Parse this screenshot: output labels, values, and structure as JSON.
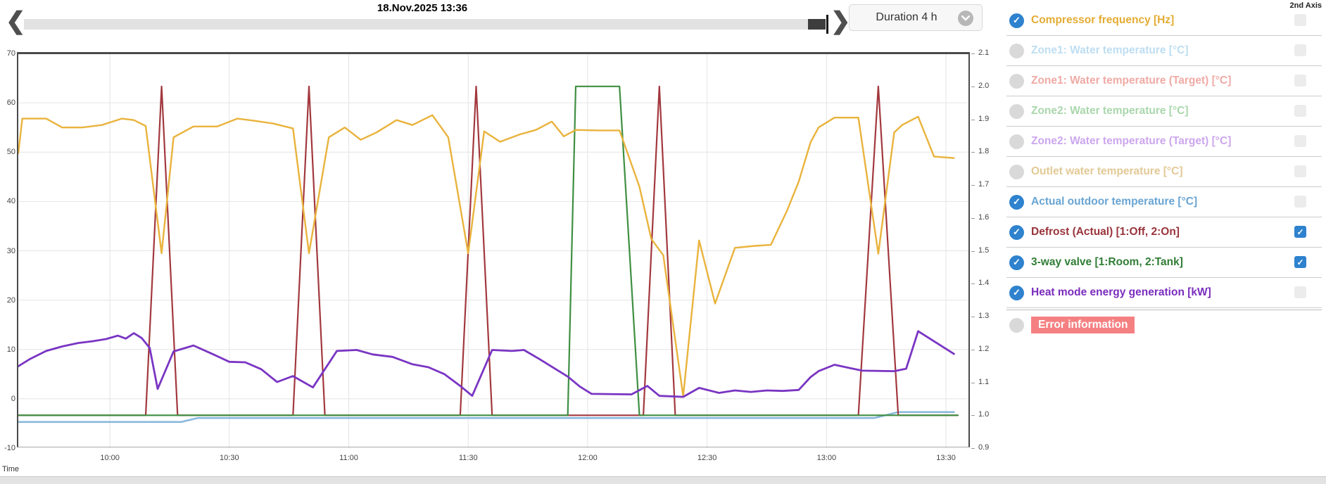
{
  "header": {
    "title": "18.Nov.2025 13:36",
    "duration_label": "Duration 4 h",
    "second_axis_label": "2nd Axis"
  },
  "colors": {
    "accent_checked": "#2e82ce",
    "error_badge_bg": "#f58082",
    "scroll_track": "#e2e2e2",
    "scroll_thumb": "#3d3d3d"
  },
  "legend": {
    "items": [
      {
        "label": "Compressor frequency [Hz]",
        "label_color": "#e4ac33",
        "active": true,
        "axis2": "unchecked"
      },
      {
        "label": "Zone1: Water temperature [°C]",
        "label_color": "#bedef2",
        "active": false,
        "axis2": "unchecked"
      },
      {
        "label": "Zone1: Water temperature (Target) [°C]",
        "label_color": "#f0aaa5",
        "active": false,
        "axis2": "unchecked"
      },
      {
        "label": "Zone2: Water temperature [°C]",
        "label_color": "#aad7ac",
        "active": false,
        "axis2": "unchecked"
      },
      {
        "label": "Zone2: Water temperature (Target) [°C]",
        "label_color": "#cca7ee",
        "active": false,
        "axis2": "unchecked"
      },
      {
        "label": "Outlet water temperature [°C]",
        "label_color": "#e2c996",
        "active": false,
        "axis2": "unchecked"
      },
      {
        "label": "Actual outdoor temperature [°C]",
        "label_color": "#69a5d3",
        "active": true,
        "axis2": "unchecked"
      },
      {
        "label": "Defrost (Actual) [1:Off, 2:On]",
        "label_color": "#99343b",
        "active": true,
        "axis2": "checked"
      },
      {
        "label": "3-way valve [1:Room, 2:Tank]",
        "label_color": "#317d36",
        "active": true,
        "axis2": "checked"
      },
      {
        "label": "Heat mode energy generation [kW]",
        "label_color": "#7b2dbe",
        "active": true,
        "axis2": "unchecked"
      },
      {
        "label": "Error information",
        "label_color": "#ffffff",
        "active": false,
        "axis2": "none",
        "badge": true
      }
    ]
  },
  "chart_data": {
    "type": "line",
    "title": "18.Nov.2025 13:36",
    "xlabel": "Time",
    "x_start": "09:37",
    "x_end": "13:36",
    "x_range_minutes": [
      577,
      816
    ],
    "x_ticks": [
      {
        "minute": 600,
        "label": "10:00"
      },
      {
        "minute": 630,
        "label": "10:30"
      },
      {
        "minute": 660,
        "label": "11:00"
      },
      {
        "minute": 690,
        "label": "11:30"
      },
      {
        "minute": 720,
        "label": "12:00"
      },
      {
        "minute": 750,
        "label": "12:30"
      },
      {
        "minute": 780,
        "label": "13:00"
      },
      {
        "minute": 810,
        "label": "13:30"
      }
    ],
    "left_axis": {
      "range": [
        -10,
        70
      ],
      "ticks": [
        70,
        60,
        50,
        40,
        30,
        20,
        10,
        0,
        -10
      ]
    },
    "right_axis": {
      "range": [
        0.9,
        2.1
      ],
      "ticks": [
        "2.1",
        "2.0",
        "1.9",
        "1.8",
        "1.7",
        "1.6",
        "1.5",
        "1.4",
        "1.3",
        "1.2",
        "1.1",
        "1.0",
        "0.9"
      ]
    },
    "h_gridlines_left_values": [
      60,
      50,
      40,
      30,
      20,
      10,
      0
    ],
    "grid": true,
    "legend_position": "right",
    "series": [
      {
        "name": "Actual outdoor temperature [°C]",
        "axis": "left",
        "color": "#88b8dd",
        "width": 2.6,
        "points": [
          [
            577,
            -4.7
          ],
          [
            618,
            -4.7
          ],
          [
            622,
            -3.9
          ],
          [
            792,
            -3.9
          ],
          [
            798,
            -2.7
          ],
          [
            812,
            -2.7
          ]
        ]
      },
      {
        "name": "Defrost (Actual) [1:Off, 2:On]",
        "axis": "right",
        "color": "#a2383e",
        "width": 2.2,
        "points": [
          [
            577,
            1
          ],
          [
            609,
            1
          ],
          [
            613,
            2
          ],
          [
            617,
            1
          ],
          [
            646,
            1
          ],
          [
            650,
            2
          ],
          [
            654,
            1
          ],
          [
            688,
            1
          ],
          [
            692,
            2
          ],
          [
            696,
            1
          ],
          [
            734,
            1
          ],
          [
            738,
            2
          ],
          [
            742,
            1
          ],
          [
            788,
            1
          ],
          [
            793,
            2
          ],
          [
            798,
            1
          ],
          [
            813,
            1
          ]
        ]
      },
      {
        "name": "3-way valve [1:Room, 2:Tank]",
        "axis": "right",
        "color": "#3e8f42",
        "width": 2.2,
        "points": [
          [
            577,
            1
          ],
          [
            715,
            1
          ],
          [
            717,
            2
          ],
          [
            728,
            2
          ],
          [
            733,
            1
          ],
          [
            813,
            1
          ]
        ]
      },
      {
        "name": "Compressor frequency [Hz]",
        "axis": "left",
        "color": "#e9b33c",
        "width": 2.4,
        "points": [
          [
            577,
            49.8
          ],
          [
            578,
            56.8
          ],
          [
            584,
            56.8
          ],
          [
            588,
            55
          ],
          [
            593,
            55
          ],
          [
            598,
            55.5
          ],
          [
            603,
            56.8
          ],
          [
            606,
            56.5
          ],
          [
            609,
            55.3
          ],
          [
            613,
            29.5
          ],
          [
            616,
            53
          ],
          [
            621,
            55.2
          ],
          [
            627,
            55.2
          ],
          [
            632,
            56.8
          ],
          [
            636,
            56.4
          ],
          [
            641,
            55.8
          ],
          [
            646,
            54.8
          ],
          [
            650,
            29.5
          ],
          [
            655,
            53
          ],
          [
            659,
            55
          ],
          [
            663,
            52.5
          ],
          [
            667,
            54
          ],
          [
            672,
            56.5
          ],
          [
            676,
            55.5
          ],
          [
            681,
            57.5
          ],
          [
            685,
            53
          ],
          [
            690,
            29.5
          ],
          [
            694,
            54.2
          ],
          [
            698,
            52.1
          ],
          [
            703,
            53.6
          ],
          [
            707,
            54.5
          ],
          [
            711,
            56.2
          ],
          [
            714,
            53.2
          ],
          [
            717,
            54.5
          ],
          [
            723,
            54.4
          ],
          [
            728,
            54.4
          ],
          [
            733,
            43
          ],
          [
            736,
            32.4
          ],
          [
            739,
            29.1
          ],
          [
            744,
            0.5
          ],
          [
            748,
            32.1
          ],
          [
            752,
            19.3
          ],
          [
            757,
            30.6
          ],
          [
            762,
            31
          ],
          [
            766,
            31.2
          ],
          [
            770,
            38
          ],
          [
            773,
            44
          ],
          [
            776,
            52
          ],
          [
            778,
            55
          ],
          [
            782,
            57
          ],
          [
            788,
            57
          ],
          [
            793,
            29.4
          ],
          [
            797,
            54
          ],
          [
            799,
            55.5
          ],
          [
            803,
            57.2
          ],
          [
            807,
            49.1
          ],
          [
            812,
            48.8
          ]
        ]
      },
      {
        "name": "Heat mode energy generation [kW]",
        "axis": "left",
        "color": "#7a35c3",
        "width": 2.8,
        "points": [
          [
            577,
            6.6
          ],
          [
            580,
            8.1
          ],
          [
            584,
            9.7
          ],
          [
            588,
            10.6
          ],
          [
            592,
            11.3
          ],
          [
            596,
            11.7
          ],
          [
            599,
            12.1
          ],
          [
            602,
            12.8
          ],
          [
            604,
            12.2
          ],
          [
            606,
            13.3
          ],
          [
            608,
            12.3
          ],
          [
            610,
            10.3
          ],
          [
            612,
            2.0
          ],
          [
            616,
            9.6
          ],
          [
            621,
            10.8
          ],
          [
            626,
            9.0
          ],
          [
            630,
            7.5
          ],
          [
            634,
            7.4
          ],
          [
            638,
            6.0
          ],
          [
            642,
            3.4
          ],
          [
            646,
            4.6
          ],
          [
            651,
            2.3
          ],
          [
            657,
            9.7
          ],
          [
            662,
            9.9
          ],
          [
            666,
            9.0
          ],
          [
            671,
            8.5
          ],
          [
            676,
            7.0
          ],
          [
            680,
            6.4
          ],
          [
            684,
            5.0
          ],
          [
            688,
            2.6
          ],
          [
            691,
            0.6
          ],
          [
            696,
            9.9
          ],
          [
            701,
            9.7
          ],
          [
            704,
            9.9
          ],
          [
            708,
            8.0
          ],
          [
            712,
            6.0
          ],
          [
            715,
            4.5
          ],
          [
            718,
            2.5
          ],
          [
            721,
            1.0
          ],
          [
            731,
            0.9
          ],
          [
            735,
            2.6
          ],
          [
            738,
            0.6
          ],
          [
            744,
            0.4
          ],
          [
            748,
            2.2
          ],
          [
            753,
            1.2
          ],
          [
            757,
            1.7
          ],
          [
            761,
            1.4
          ],
          [
            765,
            1.7
          ],
          [
            769,
            1.6
          ],
          [
            773,
            1.8
          ],
          [
            776,
            4.4
          ],
          [
            778,
            5.6
          ],
          [
            782,
            6.9
          ],
          [
            786,
            6.2
          ],
          [
            789,
            5.7
          ],
          [
            797,
            5.6
          ],
          [
            800,
            6.1
          ],
          [
            803,
            13.7
          ],
          [
            812,
            9.1
          ]
        ]
      }
    ]
  }
}
